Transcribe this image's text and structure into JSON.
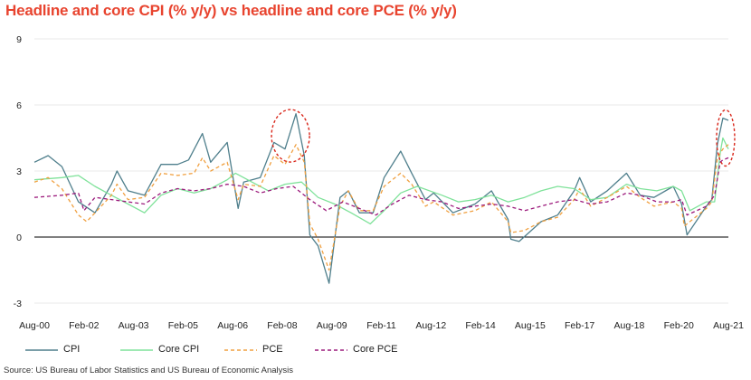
{
  "title": "Headline and core CPI (% y/y) vs headline and core PCE (% y/y)",
  "source": "Source: US Bureau of Labor Statistics and US Bureau of Economic Analysis",
  "colors": {
    "title": "#e8442f",
    "CPI": "#4f7f8c",
    "Core CPI": "#7fe29a",
    "PCE": "#f0a040",
    "Core PCE": "#9c1a7c",
    "highlight": "#d9281c",
    "grid": "#e2e2e2"
  },
  "chart_data": {
    "type": "line",
    "title": "Headline and core CPI (% y/y) vs headline and core PCE (% y/y)",
    "xlabel": "",
    "ylabel": "",
    "ylim": [
      -3,
      9
    ],
    "yticks": [
      "9",
      "6",
      "3",
      "0",
      "-3"
    ],
    "xticks": [
      "Aug-00",
      "Feb-02",
      "Aug-03",
      "Feb-05",
      "Aug-06",
      "Feb-08",
      "Aug-09",
      "Feb-11",
      "Aug-12",
      "Feb-14",
      "Aug-15",
      "Feb-17",
      "Aug-18",
      "Feb-20",
      "Aug-21"
    ],
    "x_start": "2000-08",
    "x_end": "2021-08",
    "grid": "horizontal",
    "legend": "bottom",
    "annotations": [
      "dashed red ellipse around mid-2008 CPI peak",
      "dashed red ellipse around mid-2021 CPI peak"
    ],
    "series": [
      {
        "name": "CPI",
        "style": "solid",
        "points": [
          [
            "2000-08",
            3.4
          ],
          [
            "2001-01",
            3.7
          ],
          [
            "2001-06",
            3.2
          ],
          [
            "2001-12",
            1.6
          ],
          [
            "2002-06",
            1.1
          ],
          [
            "2002-12",
            2.4
          ],
          [
            "2003-02",
            3.0
          ],
          [
            "2003-06",
            2.1
          ],
          [
            "2003-12",
            1.9
          ],
          [
            "2004-06",
            3.3
          ],
          [
            "2004-12",
            3.3
          ],
          [
            "2005-04",
            3.5
          ],
          [
            "2005-09",
            4.7
          ],
          [
            "2005-12",
            3.4
          ],
          [
            "2006-06",
            4.3
          ],
          [
            "2006-10",
            1.3
          ],
          [
            "2006-12",
            2.5
          ],
          [
            "2007-06",
            2.7
          ],
          [
            "2007-11",
            4.3
          ],
          [
            "2008-03",
            4.0
          ],
          [
            "2008-07",
            5.6
          ],
          [
            "2008-10",
            3.7
          ],
          [
            "2008-12",
            0.1
          ],
          [
            "2009-03",
            -0.4
          ],
          [
            "2009-07",
            -2.1
          ],
          [
            "2009-11",
            1.8
          ],
          [
            "2010-02",
            2.1
          ],
          [
            "2010-06",
            1.1
          ],
          [
            "2010-11",
            1.1
          ],
          [
            "2011-03",
            2.7
          ],
          [
            "2011-09",
            3.9
          ],
          [
            "2012-01",
            2.9
          ],
          [
            "2012-06",
            1.7
          ],
          [
            "2012-09",
            2.0
          ],
          [
            "2013-04",
            1.1
          ],
          [
            "2013-12",
            1.5
          ],
          [
            "2014-06",
            2.1
          ],
          [
            "2014-12",
            0.8
          ],
          [
            "2015-01",
            -0.1
          ],
          [
            "2015-04",
            -0.2
          ],
          [
            "2015-12",
            0.7
          ],
          [
            "2016-06",
            1.0
          ],
          [
            "2016-12",
            2.1
          ],
          [
            "2017-02",
            2.7
          ],
          [
            "2017-06",
            1.6
          ],
          [
            "2017-12",
            2.1
          ],
          [
            "2018-07",
            2.9
          ],
          [
            "2018-12",
            1.9
          ],
          [
            "2019-05",
            1.8
          ],
          [
            "2019-12",
            2.3
          ],
          [
            "2020-03",
            1.5
          ],
          [
            "2020-05",
            0.1
          ],
          [
            "2020-12",
            1.4
          ],
          [
            "2021-02",
            1.7
          ],
          [
            "2021-04",
            4.2
          ],
          [
            "2021-06",
            5.4
          ],
          [
            "2021-08",
            5.3
          ]
        ]
      },
      {
        "name": "Core CPI",
        "style": "solid",
        "points": [
          [
            "2000-08",
            2.6
          ],
          [
            "2001-06",
            2.7
          ],
          [
            "2001-12",
            2.8
          ],
          [
            "2002-06",
            2.3
          ],
          [
            "2002-12",
            1.9
          ],
          [
            "2003-06",
            1.5
          ],
          [
            "2003-12",
            1.1
          ],
          [
            "2004-06",
            1.9
          ],
          [
            "2004-12",
            2.2
          ],
          [
            "2005-06",
            2.0
          ],
          [
            "2005-12",
            2.2
          ],
          [
            "2006-06",
            2.6
          ],
          [
            "2006-09",
            2.9
          ],
          [
            "2007-03",
            2.5
          ],
          [
            "2007-09",
            2.1
          ],
          [
            "2008-03",
            2.4
          ],
          [
            "2008-09",
            2.5
          ],
          [
            "2009-03",
            1.8
          ],
          [
            "2009-09",
            1.5
          ],
          [
            "2010-03",
            1.1
          ],
          [
            "2010-10",
            0.6
          ],
          [
            "2011-03",
            1.2
          ],
          [
            "2011-09",
            2.0
          ],
          [
            "2012-03",
            2.3
          ],
          [
            "2012-12",
            1.9
          ],
          [
            "2013-06",
            1.6
          ],
          [
            "2013-12",
            1.7
          ],
          [
            "2014-06",
            1.9
          ],
          [
            "2014-12",
            1.6
          ],
          [
            "2015-06",
            1.8
          ],
          [
            "2015-12",
            2.1
          ],
          [
            "2016-06",
            2.3
          ],
          [
            "2016-12",
            2.2
          ],
          [
            "2017-06",
            1.7
          ],
          [
            "2017-12",
            1.8
          ],
          [
            "2018-07",
            2.4
          ],
          [
            "2018-12",
            2.2
          ],
          [
            "2019-06",
            2.1
          ],
          [
            "2019-12",
            2.3
          ],
          [
            "2020-03",
            2.1
          ],
          [
            "2020-06",
            1.2
          ],
          [
            "2020-12",
            1.6
          ],
          [
            "2021-03",
            1.6
          ],
          [
            "2021-05",
            3.8
          ],
          [
            "2021-06",
            4.5
          ],
          [
            "2021-08",
            4.0
          ]
        ]
      },
      {
        "name": "PCE",
        "style": "dashed",
        "points": [
          [
            "2000-08",
            2.5
          ],
          [
            "2001-01",
            2.7
          ],
          [
            "2001-06",
            2.2
          ],
          [
            "2001-12",
            1.0
          ],
          [
            "2002-03",
            0.7
          ],
          [
            "2002-09",
            1.5
          ],
          [
            "2002-12",
            1.9
          ],
          [
            "2003-02",
            2.4
          ],
          [
            "2003-06",
            1.7
          ],
          [
            "2003-12",
            1.8
          ],
          [
            "2004-06",
            2.9
          ],
          [
            "2004-12",
            2.8
          ],
          [
            "2005-06",
            2.9
          ],
          [
            "2005-09",
            3.6
          ],
          [
            "2005-12",
            3.0
          ],
          [
            "2006-06",
            3.4
          ],
          [
            "2006-10",
            1.7
          ],
          [
            "2006-12",
            2.4
          ],
          [
            "2007-06",
            2.3
          ],
          [
            "2007-11",
            3.7
          ],
          [
            "2008-03",
            3.3
          ],
          [
            "2008-07",
            4.2
          ],
          [
            "2008-10",
            3.4
          ],
          [
            "2008-12",
            0.6
          ],
          [
            "2009-03",
            -0.1
          ],
          [
            "2009-07",
            -1.5
          ],
          [
            "2009-11",
            1.4
          ],
          [
            "2010-02",
            2.1
          ],
          [
            "2010-06",
            1.2
          ],
          [
            "2010-11",
            1.2
          ],
          [
            "2011-03",
            2.3
          ],
          [
            "2011-09",
            2.9
          ],
          [
            "2012-01",
            2.4
          ],
          [
            "2012-06",
            1.4
          ],
          [
            "2012-09",
            1.6
          ],
          [
            "2013-04",
            1.0
          ],
          [
            "2013-12",
            1.2
          ],
          [
            "2014-06",
            1.6
          ],
          [
            "2014-12",
            0.7
          ],
          [
            "2015-01",
            0.2
          ],
          [
            "2015-06",
            0.3
          ],
          [
            "2015-12",
            0.7
          ],
          [
            "2016-06",
            0.9
          ],
          [
            "2016-12",
            1.7
          ],
          [
            "2017-02",
            2.2
          ],
          [
            "2017-06",
            1.4
          ],
          [
            "2017-12",
            1.8
          ],
          [
            "2018-07",
            2.3
          ],
          [
            "2018-12",
            1.8
          ],
          [
            "2019-05",
            1.4
          ],
          [
            "2019-12",
            1.6
          ],
          [
            "2020-03",
            1.3
          ],
          [
            "2020-04",
            0.5
          ],
          [
            "2020-12",
            1.3
          ],
          [
            "2021-02",
            1.6
          ],
          [
            "2021-04",
            3.6
          ],
          [
            "2021-06",
            4.0
          ],
          [
            "2021-08",
            4.2
          ]
        ]
      },
      {
        "name": "Core PCE",
        "style": "dashed",
        "points": [
          [
            "2000-08",
            1.8
          ],
          [
            "2001-06",
            1.9
          ],
          [
            "2001-12",
            2.0
          ],
          [
            "2002-02",
            1.2
          ],
          [
            "2002-06",
            1.8
          ],
          [
            "2002-12",
            1.7
          ],
          [
            "2003-06",
            1.6
          ],
          [
            "2003-12",
            1.5
          ],
          [
            "2004-06",
            2.0
          ],
          [
            "2004-12",
            2.2
          ],
          [
            "2005-06",
            2.1
          ],
          [
            "2005-12",
            2.2
          ],
          [
            "2006-06",
            2.4
          ],
          [
            "2006-12",
            2.3
          ],
          [
            "2007-06",
            2.0
          ],
          [
            "2007-12",
            2.2
          ],
          [
            "2008-06",
            2.3
          ],
          [
            "2008-12",
            1.7
          ],
          [
            "2009-06",
            1.2
          ],
          [
            "2009-12",
            1.6
          ],
          [
            "2010-06",
            1.3
          ],
          [
            "2010-12",
            1.0
          ],
          [
            "2011-06",
            1.5
          ],
          [
            "2011-12",
            1.9
          ],
          [
            "2012-06",
            1.7
          ],
          [
            "2012-12",
            1.6
          ],
          [
            "2013-06",
            1.3
          ],
          [
            "2013-12",
            1.4
          ],
          [
            "2014-06",
            1.5
          ],
          [
            "2014-12",
            1.4
          ],
          [
            "2015-06",
            1.2
          ],
          [
            "2015-12",
            1.4
          ],
          [
            "2016-06",
            1.6
          ],
          [
            "2016-12",
            1.7
          ],
          [
            "2017-06",
            1.5
          ],
          [
            "2017-12",
            1.6
          ],
          [
            "2018-07",
            2.0
          ],
          [
            "2018-12",
            1.9
          ],
          [
            "2019-06",
            1.6
          ],
          [
            "2019-12",
            1.6
          ],
          [
            "2020-03",
            1.7
          ],
          [
            "2020-05",
            1.0
          ],
          [
            "2020-12",
            1.4
          ],
          [
            "2021-03",
            1.9
          ],
          [
            "2021-05",
            3.4
          ],
          [
            "2021-06",
            3.5
          ],
          [
            "2021-08",
            3.6
          ]
        ]
      }
    ]
  },
  "legend": [
    {
      "label": "CPI",
      "style": "solid"
    },
    {
      "label": "Core CPI",
      "style": "solid"
    },
    {
      "label": "PCE",
      "style": "dashed"
    },
    {
      "label": "Core PCE",
      "style": "dashed"
    }
  ]
}
